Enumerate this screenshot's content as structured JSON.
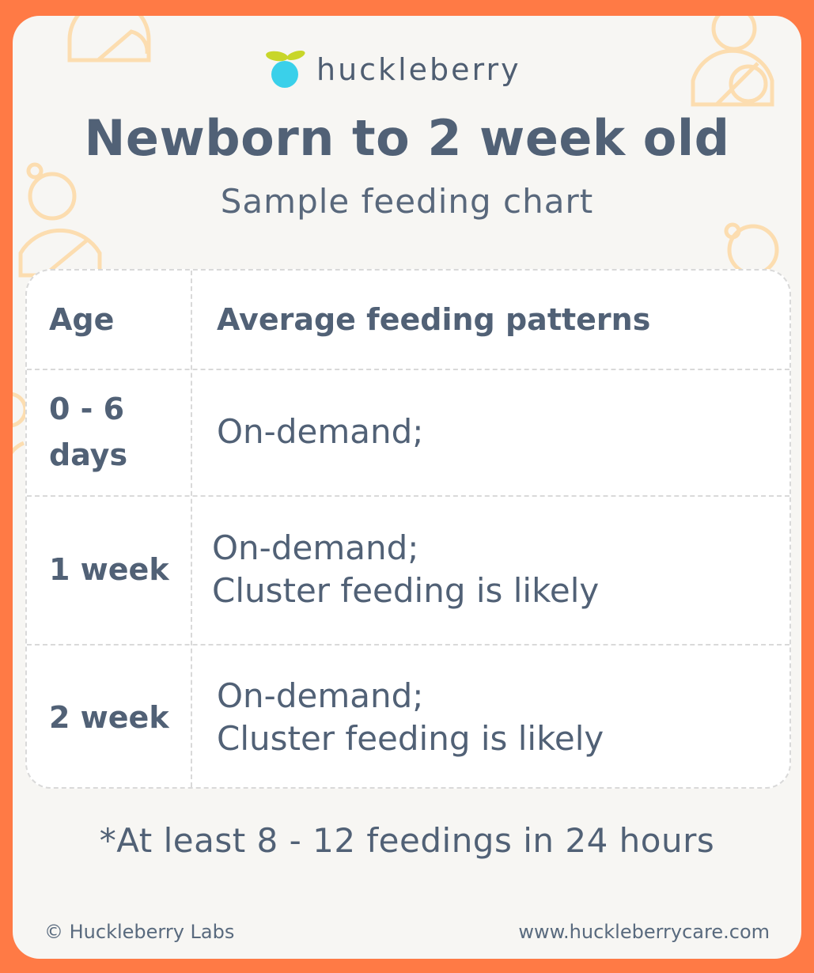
{
  "brand": {
    "name": "huckleberry",
    "leaf_color": "#C8D62A",
    "berry_color": "#3AD0EA"
  },
  "colors": {
    "frame": "#FF7A45",
    "card": "#F7F6F3",
    "text": "#516176",
    "decoration": "#FCDDB0"
  },
  "header": {
    "title": "Newborn to 2 week old",
    "subtitle": "Sample feeding chart"
  },
  "table": {
    "headers": [
      "Age",
      "Average feeding patterns"
    ],
    "rows": [
      {
        "age_lines": [
          "0 - 6",
          "days"
        ],
        "pattern_lines": [
          "On-demand;"
        ]
      },
      {
        "age_lines": [
          "1 week"
        ],
        "pattern_lines": [
          "On-demand;",
          "Cluster feeding is likely"
        ]
      },
      {
        "age_lines": [
          "2 week"
        ],
        "pattern_lines": [
          "On-demand;",
          "Cluster feeding is likely"
        ]
      }
    ]
  },
  "note": "*At least 8 - 12 feedings in 24 hours",
  "footer": {
    "copyright": "© Huckleberry Labs",
    "url": "www.huckleberrycare.com"
  },
  "icons": [
    "huckleberry-logo-icon",
    "baby-outline-decoration-icon"
  ]
}
